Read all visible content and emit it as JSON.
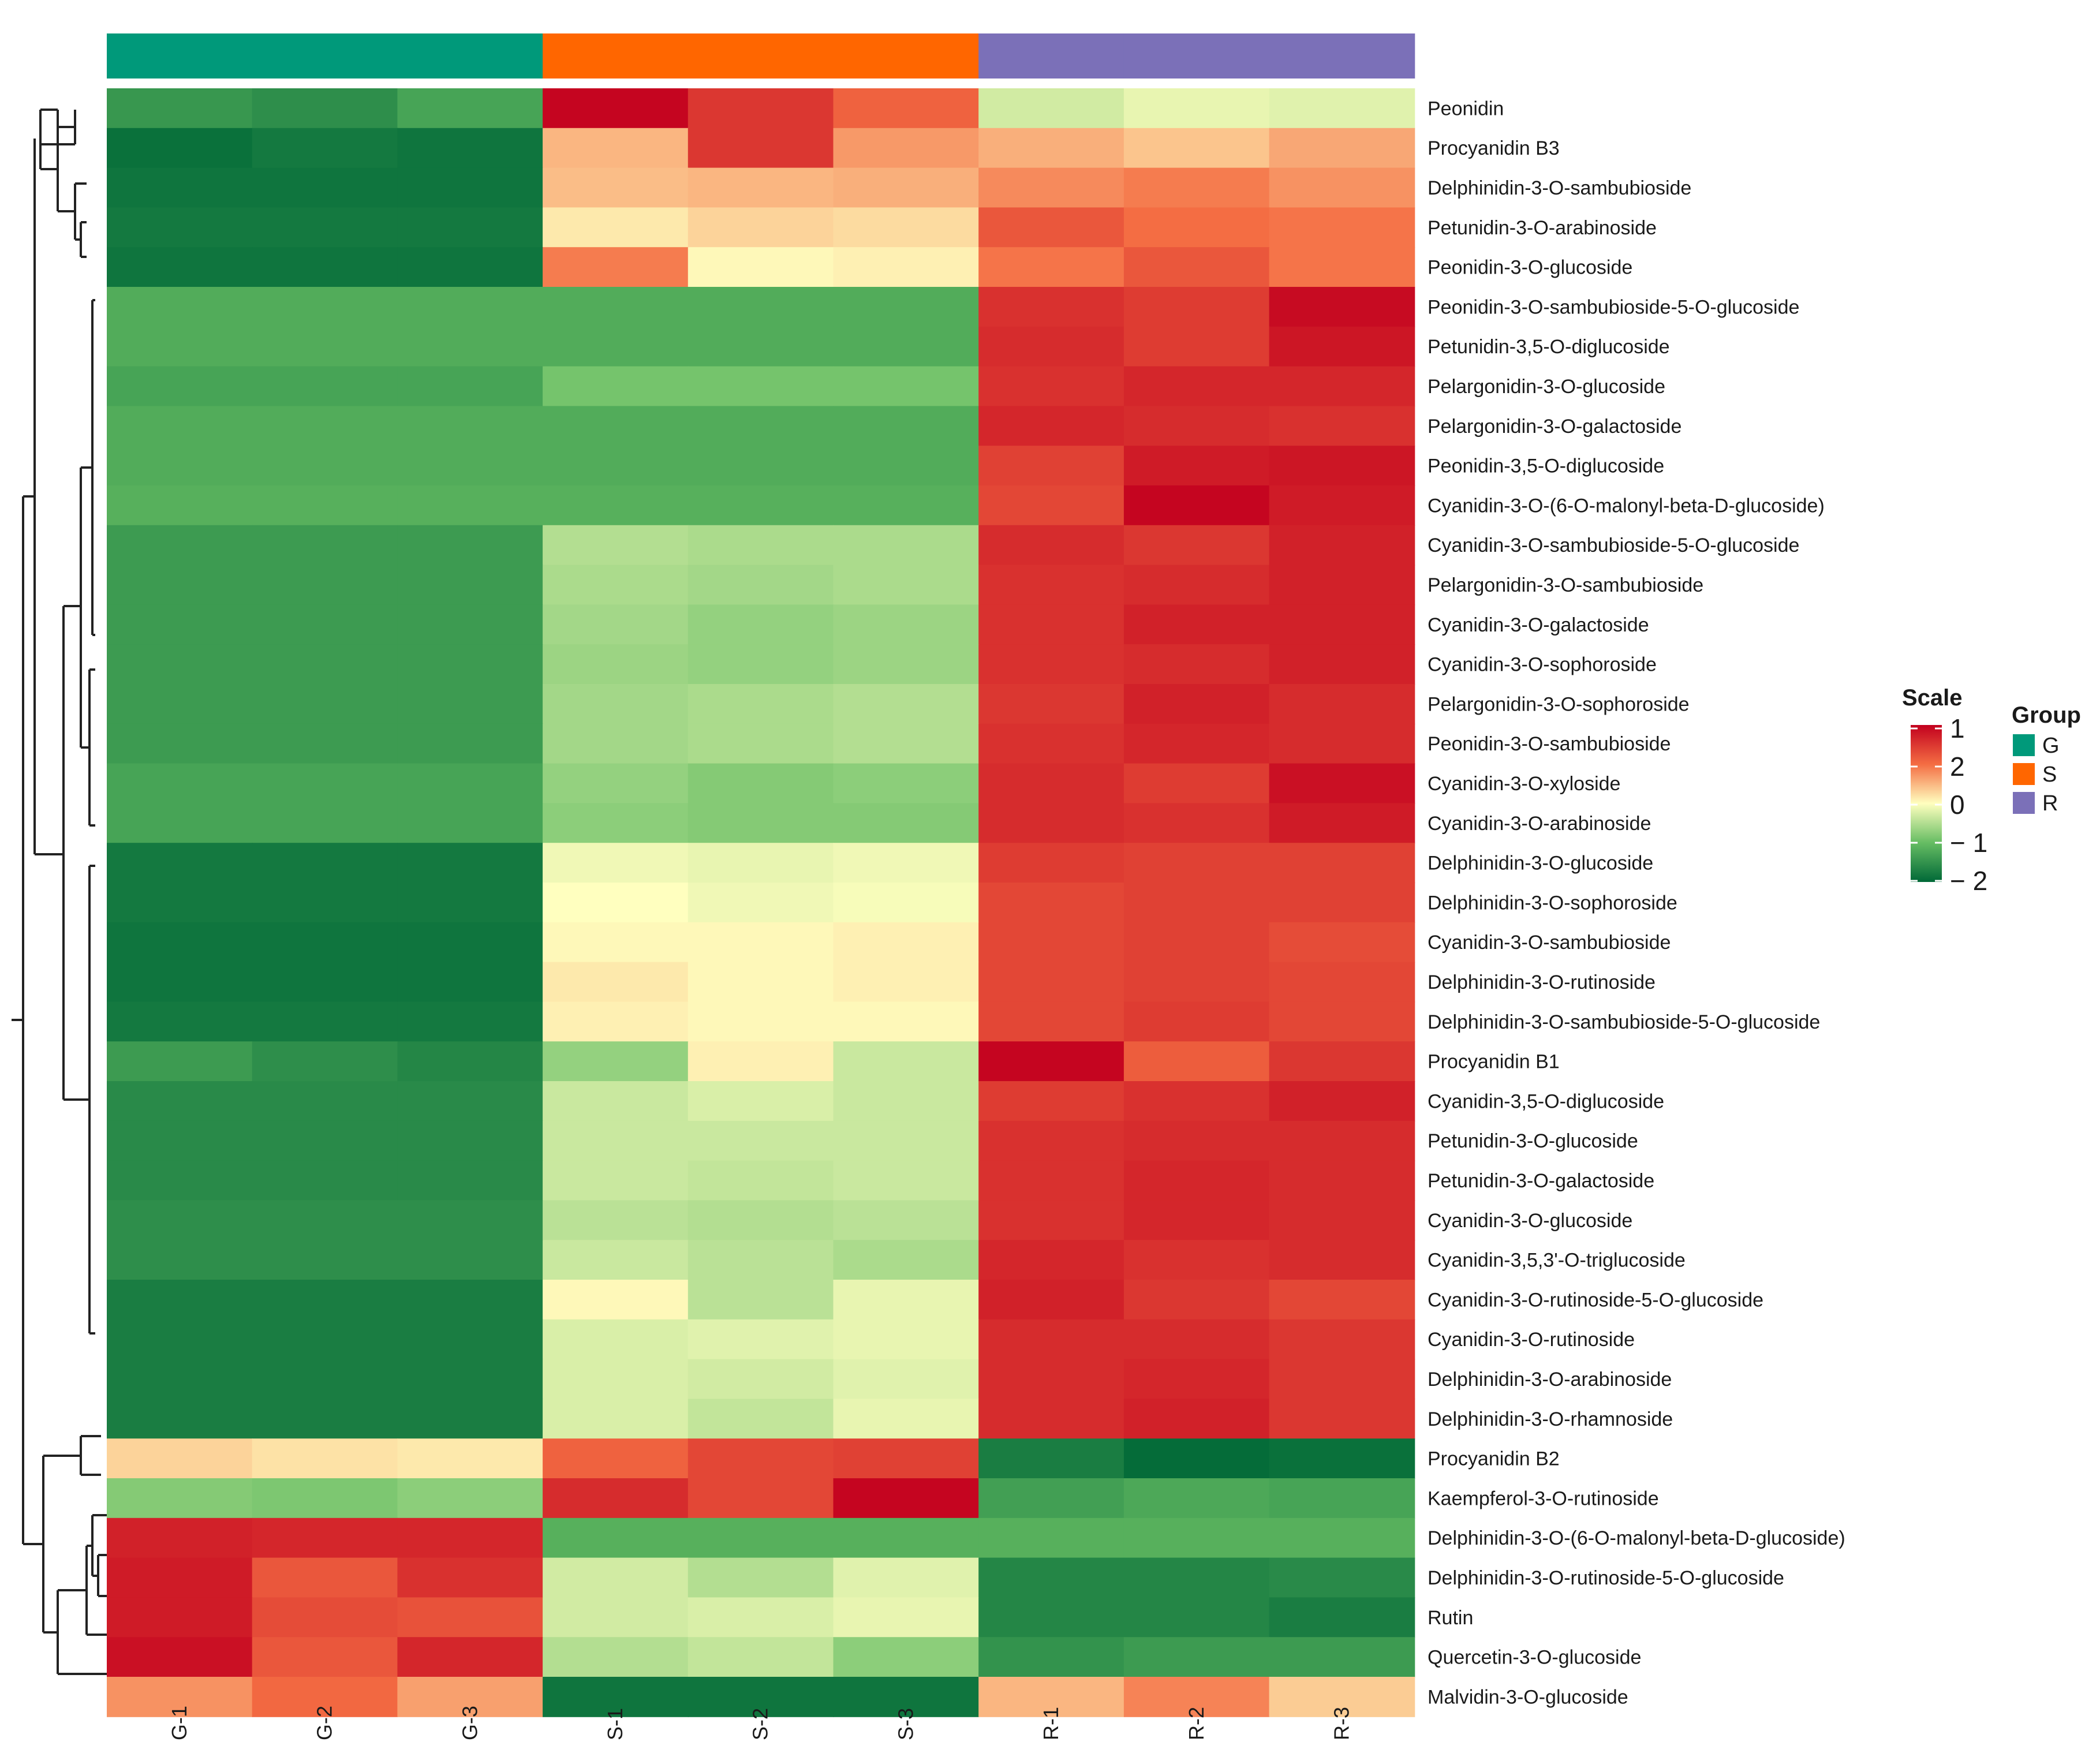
{
  "chart_data": {
    "type": "heatmap",
    "title": "",
    "xlabel": "",
    "ylabel": "",
    "columns": [
      "G-1",
      "G-2",
      "G-3",
      "S-1",
      "S-2",
      "S-3",
      "R-1",
      "R-2",
      "R-3"
    ],
    "column_groups": [
      "G",
      "G",
      "G",
      "S",
      "S",
      "S",
      "R",
      "R",
      "R"
    ],
    "groups": [
      {
        "name": "G",
        "color": "#00997a"
      },
      {
        "name": "S",
        "color": "#ff6600"
      },
      {
        "name": "R",
        "color": "#7b70b8"
      }
    ],
    "group_legend_title": "Group",
    "scale_legend_title": "Scale",
    "scale_tick_labels": [
      "1",
      "2",
      "0",
      "− 1",
      "− 2"
    ],
    "color_scale": {
      "low": "#006837",
      "mid": "#ffffbf",
      "high": "#c2001e",
      "range": [
        -2,
        2
      ]
    },
    "rows": [
      "Peonidin",
      "Procyanidin B3",
      "Delphinidin-3-O-sambubioside",
      "Petunidin-3-O-arabinoside",
      "Peonidin-3-O-glucoside",
      "Peonidin-3-O-sambubioside-5-O-glucoside",
      "Petunidin-3,5-O-diglucoside",
      "Pelargonidin-3-O-glucoside",
      "Pelargonidin-3-O-galactoside",
      "Peonidin-3,5-O-diglucoside",
      "Cyanidin-3-O-(6-O-malonyl-beta-D-glucoside)",
      "Cyanidin-3-O-sambubioside-5-O-glucoside",
      "Pelargonidin-3-O-sambubioside",
      "Cyanidin-3-O-galactoside",
      "Cyanidin-3-O-sophoroside",
      "Pelargonidin-3-O-sophoroside",
      "Peonidin-3-O-sambubioside",
      "Cyanidin-3-O-xyloside",
      "Cyanidin-3-O-arabinoside",
      "Delphinidin-3-O-glucoside",
      "Delphinidin-3-O-sophoroside",
      "Cyanidin-3-O-sambubioside",
      "Delphinidin-3-O-rutinoside",
      "Delphinidin-3-O-sambubioside-5-O-glucoside",
      "Procyanidin B1",
      "Cyanidin-3,5-O-diglucoside",
      "Petunidin-3-O-glucoside",
      "Petunidin-3-O-galactoside",
      "Cyanidin-3-O-glucoside",
      "Cyanidin-3,5,3'-O-triglucoside",
      "Cyanidin-3-O-rutinoside-5-O-glucoside",
      "Cyanidin-3-O-rutinoside",
      "Delphinidin-3-O-arabinoside",
      "Delphinidin-3-O-rhamnoside",
      "Procyanidin B2",
      "Kaempferol-3-O-rutinoside",
      "Delphinidin-3-O-(6-O-malonyl-beta-D-glucoside)",
      "Delphinidin-3-O-rutinoside-5-O-glucoside",
      "Rutin",
      "Quercetin-3-O-glucoside",
      "Malvidin-3-O-glucoside"
    ],
    "values": [
      [
        -1.45,
        -1.55,
        -1.3,
        1.95,
        1.5,
        1.1,
        -0.3,
        -0.15,
        -0.2
      ],
      [
        -1.9,
        -1.8,
        -1.85,
        0.5,
        1.5,
        0.7,
        0.55,
        0.4,
        0.6
      ],
      [
        -1.85,
        -1.85,
        -1.85,
        0.45,
        0.5,
        0.55,
        0.8,
        0.9,
        0.75
      ],
      [
        -1.8,
        -1.8,
        -1.8,
        0.15,
        0.3,
        0.25,
        1.2,
        1.0,
        0.95
      ],
      [
        -1.85,
        -1.85,
        -1.85,
        0.9,
        0.05,
        0.1,
        0.95,
        1.2,
        0.95
      ],
      [
        -1.2,
        -1.2,
        -1.2,
        -1.2,
        -1.2,
        -1.2,
        1.55,
        1.45,
        1.9
      ],
      [
        -1.2,
        -1.2,
        -1.2,
        -1.2,
        -1.2,
        -1.2,
        1.6,
        1.45,
        1.8
      ],
      [
        -1.3,
        -1.3,
        -1.3,
        -0.9,
        -0.9,
        -0.9,
        1.55,
        1.65,
        1.65
      ],
      [
        -1.2,
        -1.2,
        -1.2,
        -1.2,
        -1.2,
        -1.2,
        1.65,
        1.6,
        1.55
      ],
      [
        -1.2,
        -1.2,
        -1.2,
        -1.2,
        -1.2,
        -1.2,
        1.4,
        1.75,
        1.8
      ],
      [
        -1.15,
        -1.15,
        -1.15,
        -1.15,
        -1.15,
        -1.15,
        1.35,
        1.95,
        1.75
      ],
      [
        -1.4,
        -1.4,
        -1.4,
        -0.5,
        -0.55,
        -0.55,
        1.6,
        1.5,
        1.7
      ],
      [
        -1.4,
        -1.4,
        -1.4,
        -0.55,
        -0.6,
        -0.55,
        1.55,
        1.6,
        1.7
      ],
      [
        -1.4,
        -1.4,
        -1.4,
        -0.6,
        -0.7,
        -0.65,
        1.55,
        1.7,
        1.7
      ],
      [
        -1.4,
        -1.4,
        -1.4,
        -0.65,
        -0.7,
        -0.65,
        1.55,
        1.6,
        1.7
      ],
      [
        -1.4,
        -1.4,
        -1.4,
        -0.6,
        -0.55,
        -0.5,
        1.5,
        1.7,
        1.6
      ],
      [
        -1.4,
        -1.4,
        -1.4,
        -0.6,
        -0.55,
        -0.5,
        1.55,
        1.65,
        1.6
      ],
      [
        -1.3,
        -1.3,
        -1.3,
        -0.7,
        -0.8,
        -0.75,
        1.6,
        1.45,
        1.85
      ],
      [
        -1.3,
        -1.3,
        -1.3,
        -0.75,
        -0.8,
        -0.8,
        1.6,
        1.55,
        1.75
      ],
      [
        -1.8,
        -1.8,
        -1.8,
        -0.1,
        -0.15,
        -0.1,
        1.45,
        1.4,
        1.4
      ],
      [
        -1.8,
        -1.8,
        -1.8,
        0.0,
        -0.1,
        -0.05,
        1.35,
        1.4,
        1.4
      ],
      [
        -1.85,
        -1.85,
        -1.85,
        0.05,
        0.05,
        0.1,
        1.35,
        1.4,
        1.3
      ],
      [
        -1.85,
        -1.85,
        -1.85,
        0.15,
        0.05,
        0.1,
        1.35,
        1.4,
        1.35
      ],
      [
        -1.8,
        -1.8,
        -1.8,
        0.1,
        0.05,
        0.05,
        1.35,
        1.45,
        1.35
      ],
      [
        -1.4,
        -1.55,
        -1.65,
        -0.7,
        0.1,
        -0.35,
        1.95,
        1.15,
        1.5
      ],
      [
        -1.6,
        -1.6,
        -1.6,
        -0.35,
        -0.25,
        -0.35,
        1.45,
        1.55,
        1.7
      ],
      [
        -1.6,
        -1.6,
        -1.6,
        -0.35,
        -0.35,
        -0.35,
        1.55,
        1.6,
        1.6
      ],
      [
        -1.6,
        -1.6,
        -1.6,
        -0.35,
        -0.4,
        -0.35,
        1.55,
        1.65,
        1.6
      ],
      [
        -1.55,
        -1.55,
        -1.55,
        -0.45,
        -0.5,
        -0.45,
        1.55,
        1.65,
        1.6
      ],
      [
        -1.55,
        -1.55,
        -1.55,
        -0.35,
        -0.45,
        -0.55,
        1.65,
        1.55,
        1.6
      ],
      [
        -1.75,
        -1.75,
        -1.75,
        0.05,
        -0.45,
        -0.15,
        1.7,
        1.5,
        1.35
      ],
      [
        -1.75,
        -1.75,
        -1.75,
        -0.25,
        -0.2,
        -0.15,
        1.6,
        1.6,
        1.5
      ],
      [
        -1.75,
        -1.75,
        -1.75,
        -0.25,
        -0.3,
        -0.2,
        1.6,
        1.65,
        1.5
      ],
      [
        -1.75,
        -1.75,
        -1.75,
        -0.25,
        -0.4,
        -0.15,
        1.6,
        1.7,
        1.5
      ],
      [
        0.3,
        0.2,
        0.15,
        1.1,
        1.35,
        1.4,
        -1.75,
        -1.95,
        -1.9
      ],
      [
        -0.8,
        -0.85,
        -0.75,
        1.6,
        1.35,
        1.95,
        -1.35,
        -1.25,
        -1.3
      ],
      [
        1.7,
        1.65,
        1.65,
        -1.15,
        -1.15,
        -1.15,
        -1.15,
        -1.15,
        -1.15
      ],
      [
        1.75,
        1.2,
        1.55,
        -0.3,
        -0.5,
        -0.2,
        -1.65,
        -1.65,
        -1.6
      ],
      [
        1.75,
        1.3,
        1.25,
        -0.3,
        -0.25,
        -0.15,
        -1.65,
        -1.65,
        -1.75
      ],
      [
        1.85,
        1.2,
        1.65,
        -0.5,
        -0.4,
        -0.75,
        -1.5,
        -1.4,
        -1.4
      ],
      [
        0.75,
        1.05,
        0.65,
        -1.85,
        -1.85,
        -1.85,
        0.5,
        0.85,
        0.35
      ]
    ]
  }
}
